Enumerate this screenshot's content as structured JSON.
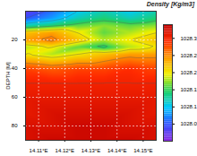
{
  "chart_data": {
    "type": "heatmap",
    "title": "Density [Kg/m3]",
    "y_label": "DEPTH [M]",
    "x": [
      14.105,
      14.115,
      14.125,
      14.135,
      14.145,
      14.155
    ],
    "y": [
      0,
      5,
      10,
      15,
      20,
      25,
      30,
      40,
      50,
      60,
      70,
      80,
      90
    ],
    "values": [
      [
        1028.02,
        1028.06,
        1028.1,
        1028.12,
        1028.1,
        1028.12
      ],
      [
        1028.05,
        1028.08,
        1028.12,
        1028.14,
        1028.12,
        1028.14
      ],
      [
        1028.12,
        1028.14,
        1028.16,
        1028.17,
        1028.16,
        1028.17
      ],
      [
        1028.22,
        1028.24,
        1028.2,
        1028.16,
        1028.18,
        1028.2
      ],
      [
        1028.24,
        1028.26,
        1028.22,
        1028.18,
        1028.2,
        1028.22
      ],
      [
        1028.18,
        1028.2,
        1028.16,
        1028.14,
        1028.18,
        1028.2
      ],
      [
        1028.2,
        1028.18,
        1028.2,
        1028.22,
        1028.24,
        1028.24
      ],
      [
        1028.28,
        1028.27,
        1028.28,
        1028.28,
        1028.29,
        1028.28
      ],
      [
        1028.3,
        1028.3,
        1028.3,
        1028.3,
        1028.3,
        1028.3
      ],
      [
        1028.31,
        1028.31,
        1028.31,
        1028.31,
        1028.31,
        1028.31
      ],
      [
        1028.31,
        1028.32,
        1028.32,
        1028.32,
        1028.32,
        1028.31
      ],
      [
        1028.32,
        1028.32,
        1028.33,
        1028.33,
        1028.32,
        1028.32
      ],
      [
        1028.32,
        1028.33,
        1028.33,
        1028.33,
        1028.33,
        1028.32
      ]
    ],
    "xlim": [
      14.105,
      14.155
    ],
    "xticks": [
      {
        "value": 14.11,
        "label": "14.11°E"
      },
      {
        "value": 14.12,
        "label": "14.12°E"
      },
      {
        "value": 14.13,
        "label": "14.13°E"
      },
      {
        "value": 14.14,
        "label": "14.14°E"
      },
      {
        "value": 14.15,
        "label": "14.15°E"
      }
    ],
    "ylim": [
      0,
      90
    ],
    "yticks": [
      20,
      40,
      60,
      80
    ],
    "colorbar_range": [
      1028.0,
      1028.34
    ],
    "colorbar_ticks": [
      1028.3,
      1028.25,
      1028.2,
      1028.15,
      1028.1,
      1028.05
    ],
    "grid": true
  }
}
